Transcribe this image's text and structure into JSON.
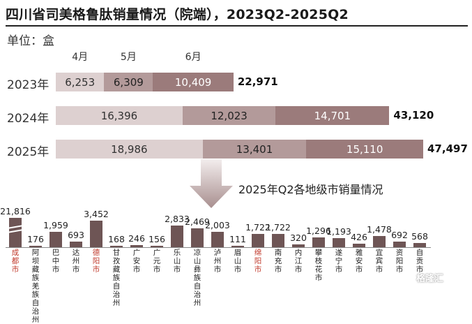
{
  "title": "四川省司美格鲁肽销量情况（院端），2023Q2-2025Q2",
  "unit_label": "单位：盒",
  "months": [
    "4月",
    "5月",
    "6月"
  ],
  "colors": {
    "apr": "#ddd0d0",
    "may": "#b39a9a",
    "jun": "#9b7b7b",
    "city_bar": "#6e5555",
    "highlight_city": "#c0392b"
  },
  "chart_data": [
    {
      "type": "bar",
      "orientation": "horizontal",
      "stacked": true,
      "categories": [
        "2023年",
        "2024年",
        "2025年"
      ],
      "series": [
        {
          "name": "4月",
          "values": [
            6253,
            16396,
            18986
          ],
          "labels": [
            "6,253",
            "16,396",
            "18,986"
          ]
        },
        {
          "name": "5月",
          "values": [
            6309,
            12023,
            13401
          ],
          "labels": [
            "6,309",
            "12,023",
            "13,401"
          ]
        },
        {
          "name": "6月",
          "values": [
            10409,
            14701,
            15110
          ],
          "labels": [
            "10,409",
            "14,701",
            "15,110"
          ]
        }
      ],
      "totals": [
        22971,
        43120,
        47497
      ],
      "total_labels": [
        "22,971",
        "43,120",
        "47,497"
      ],
      "xlim": [
        0,
        50000
      ]
    },
    {
      "type": "bar",
      "title": "2025年Q2各地级市销量情况",
      "axis_break": true,
      "categories": [
        "成都市",
        "阿坝藏族羌族自治州",
        "巴中市",
        "达州市",
        "德阳市",
        "甘孜藏族自治州",
        "广安市",
        "广元市",
        "乐山市",
        "凉山彝族自治州",
        "泸州市",
        "眉山市",
        "绵阳市",
        "南充市",
        "内江市",
        "攀枝花市",
        "遂宁市",
        "雅安市",
        "宜宾市",
        "资阳市",
        "自贡市"
      ],
      "values": [
        21816,
        176,
        1959,
        693,
        3452,
        168,
        246,
        156,
        2833,
        2469,
        2003,
        111,
        1722,
        1722,
        320,
        1296,
        1193,
        426,
        1478,
        692,
        568
      ],
      "value_labels": [
        "21,816",
        "176",
        "1,959",
        "693",
        "3,452",
        "168",
        "246",
        "156",
        "2,833",
        "2,469",
        "2,003",
        "111",
        "1,722",
        "1,722",
        "320",
        "1,296",
        "1,193",
        "426",
        "1,478",
        "692",
        "568"
      ],
      "highlighted": [
        "成都市",
        "德阳市",
        "绵阳市"
      ]
    }
  ],
  "watermark": "格隆汇"
}
